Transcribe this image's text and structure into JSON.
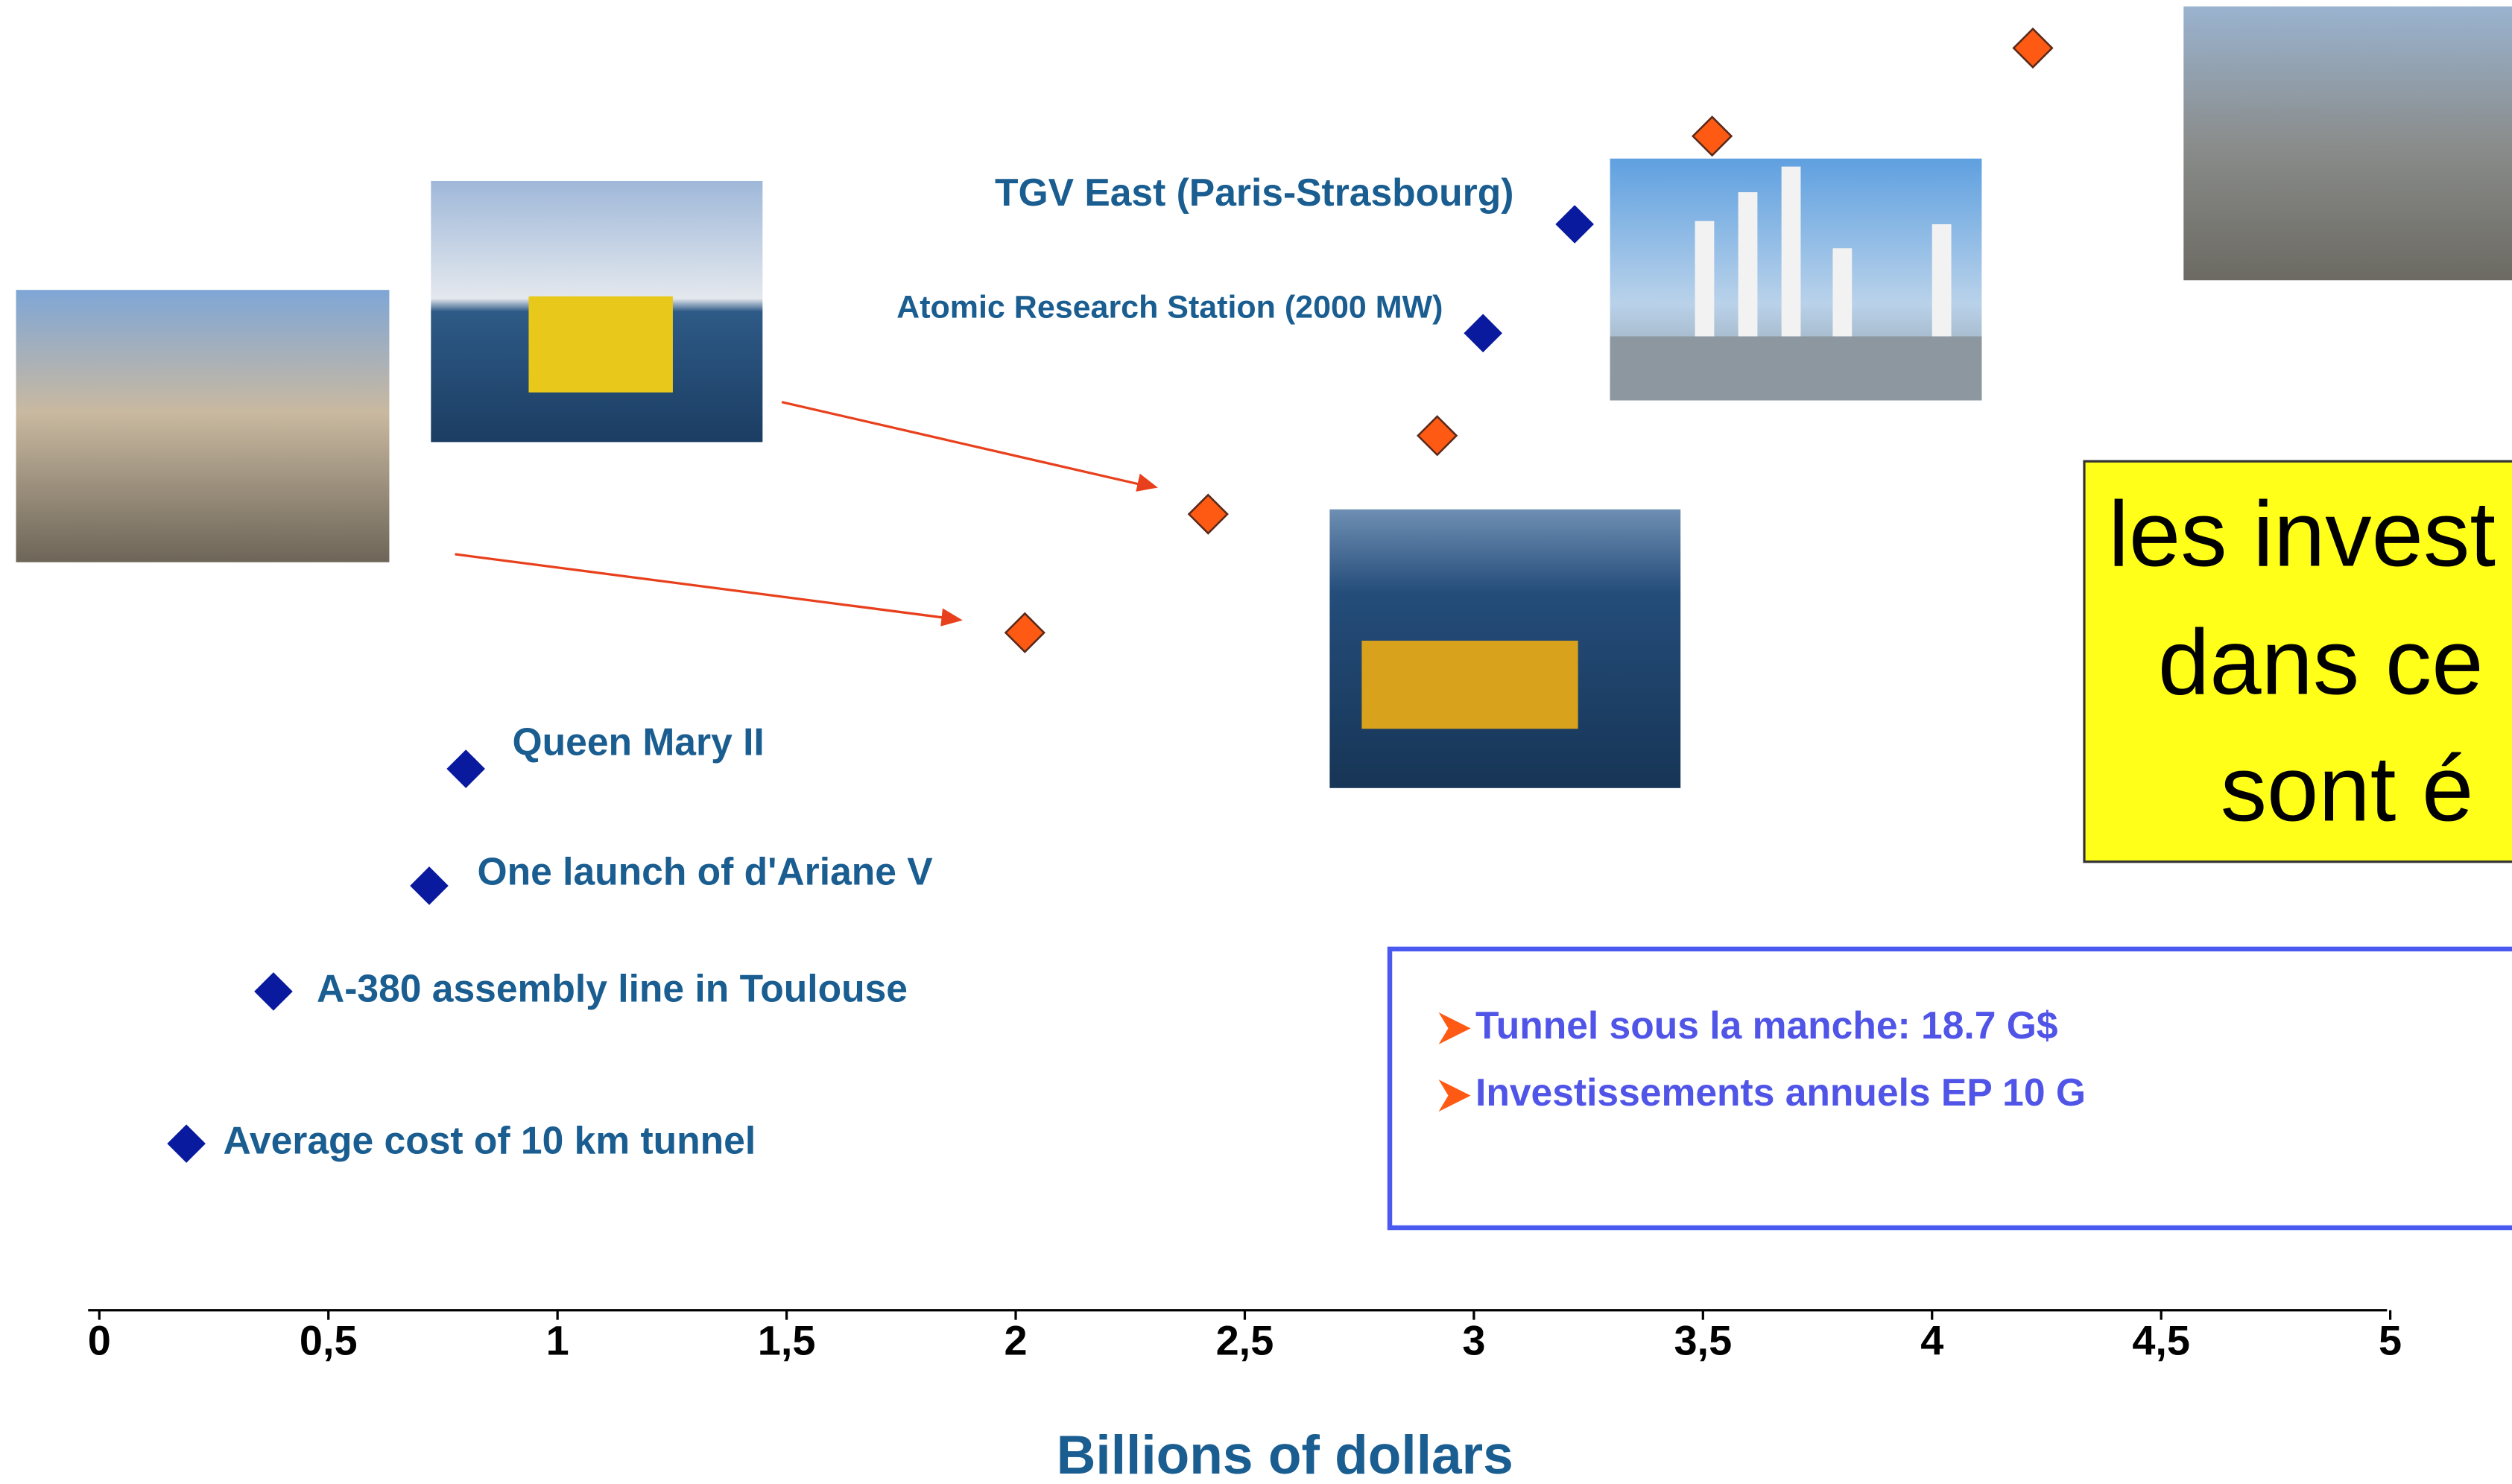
{
  "chart_data": {
    "type": "scatter",
    "x_label": "Billions of dollars",
    "xlim": [
      0,
      5
    ],
    "xticks": [
      {
        "value": 0,
        "label": "0"
      },
      {
        "value": 0.5,
        "label": "0,5"
      },
      {
        "value": 1,
        "label": "1"
      },
      {
        "value": 1.5,
        "label": "1,5"
      },
      {
        "value": 2,
        "label": "2"
      },
      {
        "value": 2.5,
        "label": "2,5"
      },
      {
        "value": 3,
        "label": "3"
      },
      {
        "value": 3.5,
        "label": "3,5"
      },
      {
        "value": 4,
        "label": "4"
      },
      {
        "value": 4.5,
        "label": "4,5"
      },
      {
        "value": 5,
        "label": "5"
      }
    ],
    "series": [
      {
        "color": "#0a1a9e",
        "labels": [
          "Average cost of 10 km tunnel",
          "A-380 assembly line in Toulouse",
          "One launch of d'Ariane V",
          "Queen Mary II",
          "Atomic Research Station (2000 MW)",
          "TGV East (Paris-Strasbourg)"
        ],
        "x": [
          0.19,
          0.38,
          0.72,
          0.8,
          3.02,
          3.22
        ]
      },
      {
        "color": "#ff5a14",
        "x": [
          2.02,
          2.42,
          2.92,
          3.52,
          4.22
        ]
      }
    ],
    "callout": [
      "les invest",
      "dans ce",
      "sont é"
    ],
    "notes": [
      "Tunnel sous la manche: 18.7 G$",
      "Investissements annuels EP 10 G"
    ]
  }
}
